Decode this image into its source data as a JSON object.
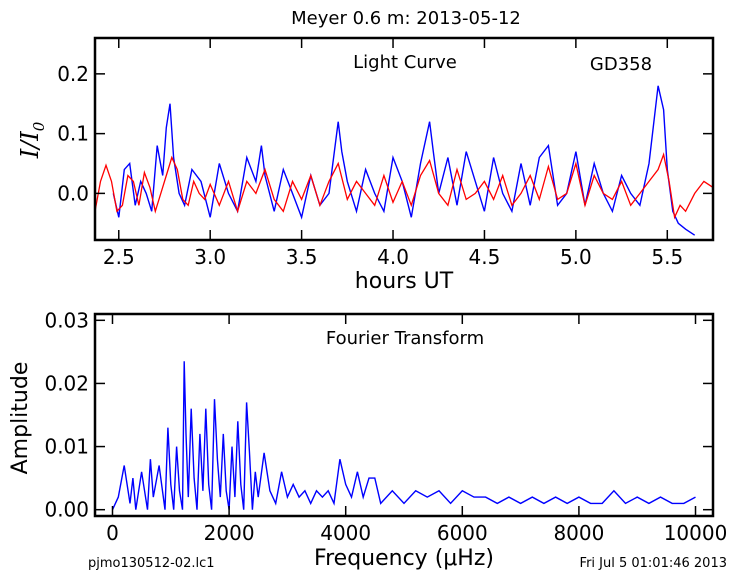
{
  "suptitle": "Meyer 0.6 m:  2013-05-12",
  "footer": {
    "left": "pjmo130512-02.lc1",
    "right": "Fri Jul  5 01:01:46 2013"
  },
  "chart_data": [
    {
      "type": "line",
      "title": "Light Curve",
      "annotation": "GD358",
      "xlabel": "hours UT",
      "ylabel_parts": [
        "I/I",
        "0"
      ],
      "xlim": [
        2.37,
        5.75
      ],
      "ylim": [
        -0.078,
        0.26
      ],
      "xticks": [
        "2.5",
        "3.0",
        "3.5",
        "4.0",
        "4.5",
        "5.0",
        "5.5"
      ],
      "yticks": [
        "0.0",
        "0.1",
        "0.2"
      ],
      "series": [
        {
          "color": "#0000ff",
          "x": [
            2.47,
            2.5,
            2.53,
            2.56,
            2.59,
            2.62,
            2.65,
            2.68,
            2.71,
            2.74,
            2.76,
            2.78,
            2.8,
            2.83,
            2.86,
            2.9,
            2.95,
            3.0,
            3.05,
            3.1,
            3.15,
            3.2,
            3.25,
            3.28,
            3.3,
            3.35,
            3.4,
            3.45,
            3.5,
            3.55,
            3.6,
            3.65,
            3.7,
            3.72,
            3.75,
            3.8,
            3.85,
            3.9,
            3.95,
            4.0,
            4.05,
            4.1,
            4.15,
            4.2,
            4.22,
            4.25,
            4.3,
            4.35,
            4.4,
            4.45,
            4.5,
            4.55,
            4.6,
            4.65,
            4.7,
            4.75,
            4.8,
            4.85,
            4.9,
            4.95,
            5.0,
            5.05,
            5.1,
            5.15,
            5.2,
            5.25,
            5.3,
            5.35,
            5.4,
            5.45,
            5.48,
            5.5,
            5.53,
            5.56,
            5.6,
            5.65
          ],
          "y": [
            0.0,
            -0.04,
            0.04,
            0.05,
            -0.02,
            0.02,
            0.0,
            -0.03,
            0.08,
            0.03,
            0.11,
            0.15,
            0.06,
            0.0,
            -0.02,
            0.04,
            0.02,
            -0.04,
            0.05,
            0.0,
            -0.03,
            0.06,
            0.02,
            0.08,
            0.03,
            -0.03,
            0.04,
            0.0,
            -0.04,
            0.03,
            -0.02,
            0.0,
            0.12,
            0.07,
            0.02,
            -0.03,
            0.04,
            0.0,
            -0.03,
            0.06,
            0.02,
            -0.04,
            0.05,
            0.12,
            0.07,
            0.0,
            0.06,
            -0.02,
            0.07,
            0.02,
            -0.03,
            0.06,
            0.0,
            -0.03,
            0.05,
            -0.02,
            0.06,
            0.08,
            -0.02,
            0.0,
            0.07,
            -0.02,
            0.05,
            0.0,
            -0.03,
            0.03,
            0.0,
            -0.02,
            0.05,
            0.18,
            0.14,
            0.04,
            -0.03,
            -0.05,
            -0.06,
            -0.07
          ]
        },
        {
          "color": "#ff0000",
          "x": [
            2.37,
            2.4,
            2.43,
            2.46,
            2.49,
            2.52,
            2.55,
            2.58,
            2.61,
            2.64,
            2.67,
            2.7,
            2.73,
            2.76,
            2.79,
            2.82,
            2.85,
            2.88,
            2.91,
            2.94,
            2.97,
            3.0,
            3.05,
            3.1,
            3.15,
            3.2,
            3.25,
            3.3,
            3.35,
            3.4,
            3.45,
            3.5,
            3.55,
            3.6,
            3.65,
            3.7,
            3.75,
            3.8,
            3.85,
            3.9,
            3.95,
            4.0,
            4.05,
            4.1,
            4.15,
            4.2,
            4.25,
            4.3,
            4.35,
            4.4,
            4.45,
            4.5,
            4.55,
            4.6,
            4.65,
            4.7,
            4.75,
            4.8,
            4.85,
            4.9,
            4.95,
            5.0,
            5.05,
            5.1,
            5.15,
            5.2,
            5.25,
            5.3,
            5.35,
            5.4,
            5.45,
            5.48,
            5.51,
            5.54,
            5.57,
            5.6,
            5.65,
            5.7,
            5.75
          ],
          "y": [
            -0.03,
            0.02,
            0.047,
            0.02,
            -0.03,
            -0.02,
            0.03,
            0.02,
            -0.02,
            0.035,
            0.01,
            -0.03,
            0.0,
            0.03,
            0.06,
            0.04,
            -0.01,
            -0.02,
            0.02,
            0.0,
            -0.01,
            0.015,
            -0.02,
            0.02,
            -0.03,
            0.02,
            0.0,
            0.04,
            -0.01,
            -0.03,
            0.02,
            -0.01,
            0.03,
            -0.02,
            0.02,
            0.05,
            -0.01,
            0.02,
            0.0,
            -0.02,
            0.03,
            -0.015,
            0.02,
            -0.02,
            0.03,
            0.055,
            0.0,
            -0.02,
            0.04,
            -0.01,
            0.0,
            0.02,
            -0.01,
            0.03,
            -0.02,
            0.0,
            0.03,
            -0.01,
            0.045,
            -0.01,
            0.0,
            0.05,
            -0.02,
            0.03,
            0.0,
            -0.01,
            0.02,
            -0.02,
            0.0,
            0.02,
            0.04,
            0.065,
            0.02,
            -0.04,
            -0.02,
            -0.03,
            0.0,
            0.02,
            0.01
          ]
        }
      ]
    },
    {
      "type": "line",
      "title": "Fourier Transform",
      "xlabel": "Frequency (μHz)",
      "ylabel": "Amplitude",
      "xlim": [
        -300,
        10300
      ],
      "ylim": [
        -0.001,
        0.031
      ],
      "xticks": [
        "0",
        "2000",
        "4000",
        "6000",
        "8000",
        "10000"
      ],
      "yticks": [
        "0.00",
        "0.01",
        "0.02",
        "0.03"
      ],
      "series": [
        {
          "color": "#0000ff",
          "x": [
            0,
            100,
            200,
            300,
            350,
            400,
            500,
            600,
            650,
            700,
            800,
            900,
            950,
            1000,
            1050,
            1100,
            1150,
            1200,
            1230,
            1260,
            1300,
            1350,
            1400,
            1450,
            1500,
            1550,
            1600,
            1650,
            1700,
            1750,
            1800,
            1850,
            1900,
            1950,
            2000,
            2050,
            2100,
            2150,
            2200,
            2250,
            2300,
            2350,
            2400,
            2450,
            2500,
            2600,
            2700,
            2800,
            2900,
            3000,
            3100,
            3200,
            3300,
            3400,
            3500,
            3600,
            3700,
            3800,
            3900,
            4000,
            4100,
            4200,
            4300,
            4400,
            4500,
            4600,
            4800,
            5000,
            5200,
            5400,
            5600,
            5800,
            6000,
            6200,
            6400,
            6600,
            6800,
            7000,
            7200,
            7400,
            7600,
            7800,
            8000,
            8200,
            8400,
            8600,
            8800,
            9000,
            9200,
            9400,
            9600,
            9800,
            10000
          ],
          "y": [
            0.0,
            0.002,
            0.007,
            0.001,
            0.005,
            0.0,
            0.006,
            0.0,
            0.008,
            0.002,
            0.007,
            0.0,
            0.013,
            0.004,
            0.0,
            0.01,
            0.003,
            0.0,
            0.0235,
            0.012,
            0.002,
            0.016,
            0.005,
            0.0,
            0.012,
            0.003,
            0.016,
            0.004,
            0.0,
            0.0175,
            0.008,
            0.002,
            0.012,
            0.003,
            0.0,
            0.01,
            0.002,
            0.014,
            0.004,
            0.0,
            0.017,
            0.009,
            0.0,
            0.006,
            0.002,
            0.009,
            0.003,
            0.001,
            0.006,
            0.002,
            0.004,
            0.002,
            0.003,
            0.001,
            0.003,
            0.002,
            0.003,
            0.001,
            0.008,
            0.004,
            0.002,
            0.006,
            0.002,
            0.005,
            0.005,
            0.001,
            0.003,
            0.001,
            0.003,
            0.002,
            0.003,
            0.001,
            0.003,
            0.002,
            0.002,
            0.001,
            0.002,
            0.001,
            0.002,
            0.001,
            0.002,
            0.001,
            0.002,
            0.001,
            0.001,
            0.003,
            0.001,
            0.002,
            0.001,
            0.002,
            0.001,
            0.001,
            0.002
          ]
        }
      ]
    }
  ]
}
